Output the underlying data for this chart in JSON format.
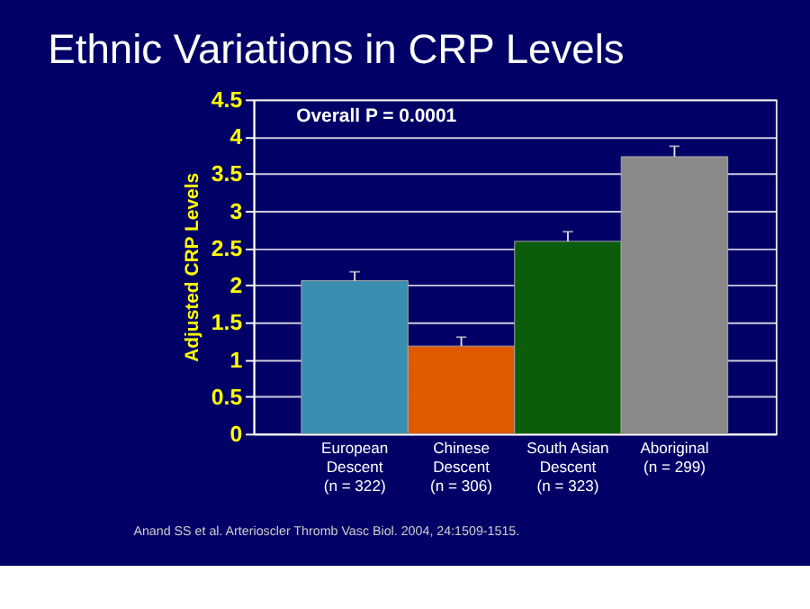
{
  "chart_data": {
    "type": "bar",
    "title": "Ethnic Variations in CRP Levels",
    "ylabel": "Adjusted CRP Levels",
    "categories": [
      "European\nDescent\n(n = 322)",
      "Chinese\nDescent\n(n = 306)",
      "South Asian\nDescent\n(n = 323)",
      "Aboriginal\n(n = 299)"
    ],
    "values": [
      2.06,
      1.18,
      2.59,
      3.73
    ],
    "errors": [
      [
        2.06,
        2.18
      ],
      [
        1.18,
        1.3
      ],
      [
        2.59,
        2.72
      ],
      [
        3.73,
        3.87
      ]
    ],
    "colors": [
      "#3a8fb0",
      "#e05a00",
      "#0b5d0b",
      "#8a8a8a"
    ],
    "ylim": [
      0,
      4.5
    ],
    "yticks": [
      0,
      0.5,
      1,
      1.5,
      2,
      2.5,
      3,
      3.5,
      4,
      4.5
    ],
    "grid": "y",
    "annotations": [
      "Overall P = 0.0001",
      "Anand SS et al. Arterioscler Thromb Vasc Biol. 2004, 24:1509-1515."
    ]
  }
}
